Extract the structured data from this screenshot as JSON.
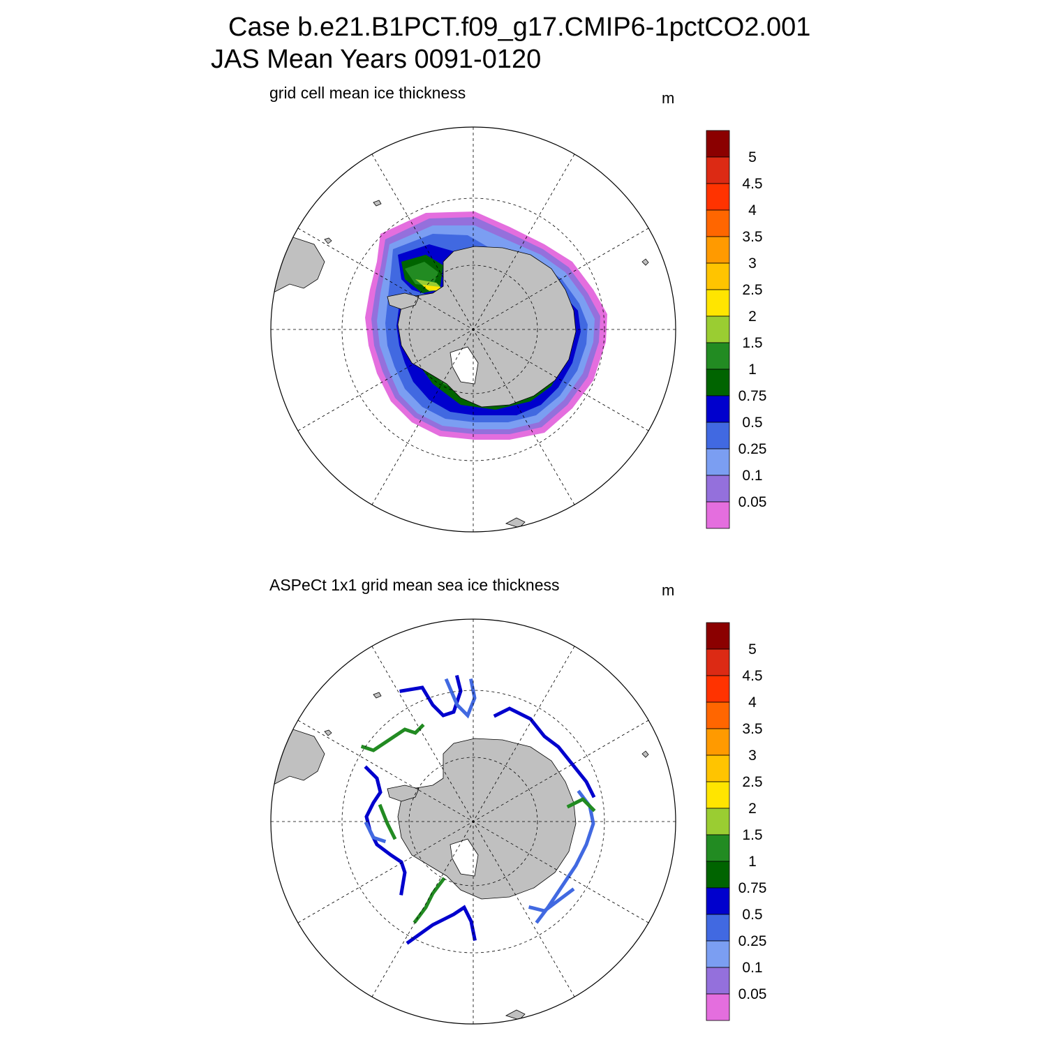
{
  "title": {
    "line1": "Case b.e21.B1PCT.f09_g17.CMIP6-1pctCO2.001",
    "line2": "JAS Mean   Years 0091-0120"
  },
  "panels": [
    {
      "id": "model",
      "title": "grid cell mean ice thickness",
      "unit": "m"
    },
    {
      "id": "obs",
      "title": "ASPeCt 1x1 grid mean sea ice thickness",
      "unit": "m"
    }
  ],
  "colorbar": {
    "colors": [
      "#e46ede",
      "#9470dc",
      "#7b9ef2",
      "#4169e1",
      "#0000cd",
      "#006400",
      "#228b22",
      "#9acd32",
      "#ffe500",
      "#ffc400",
      "#ff9a00",
      "#ff6600",
      "#ff3300",
      "#dc2a14",
      "#8b0000"
    ],
    "labels": [
      "0.05",
      "0.1",
      "0.25",
      "0.5",
      "0.75",
      "1",
      "1.5",
      "2",
      "2.5",
      "3",
      "3.5",
      "4",
      "4.5",
      "5"
    ]
  },
  "land_color": "#c0c0c0"
}
